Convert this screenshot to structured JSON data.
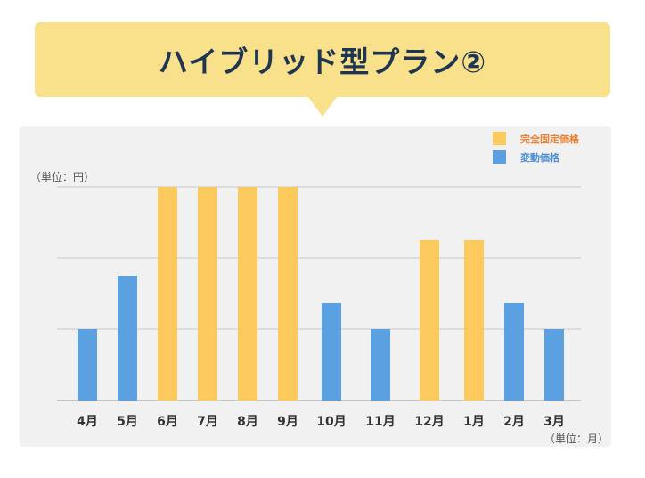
{
  "title": "ハイブリッド型プラン②",
  "colors": {
    "banner": "#f9e08a",
    "title": "#1e3654",
    "fixed": "#fbc95c",
    "variable": "#5ba1e1",
    "fixed_legend_text": "#f08030",
    "variable_legend_text": "#4a8fd8"
  },
  "chart_data": {
    "type": "bar",
    "y_unit_label": "（単位：円）",
    "x_unit_label": "（単位：月）",
    "categories": [
      "4月",
      "5月",
      "6月",
      "7月",
      "8月",
      "9月",
      "10月",
      "11月",
      "12月",
      "1月",
      "2月",
      "3月"
    ],
    "values": [
      40,
      70,
      120,
      120,
      120,
      120,
      55,
      40,
      90,
      90,
      55,
      40
    ],
    "series_type": [
      "variable",
      "variable",
      "fixed",
      "fixed",
      "fixed",
      "fixed",
      "variable",
      "variable",
      "fixed",
      "fixed",
      "variable",
      "variable"
    ],
    "legend": [
      {
        "key": "fixed",
        "label": "完全固定価格"
      },
      {
        "key": "variable",
        "label": "変動価格"
      }
    ],
    "ylim": [
      0,
      120
    ],
    "grid": true,
    "legend_position": "top-right"
  }
}
